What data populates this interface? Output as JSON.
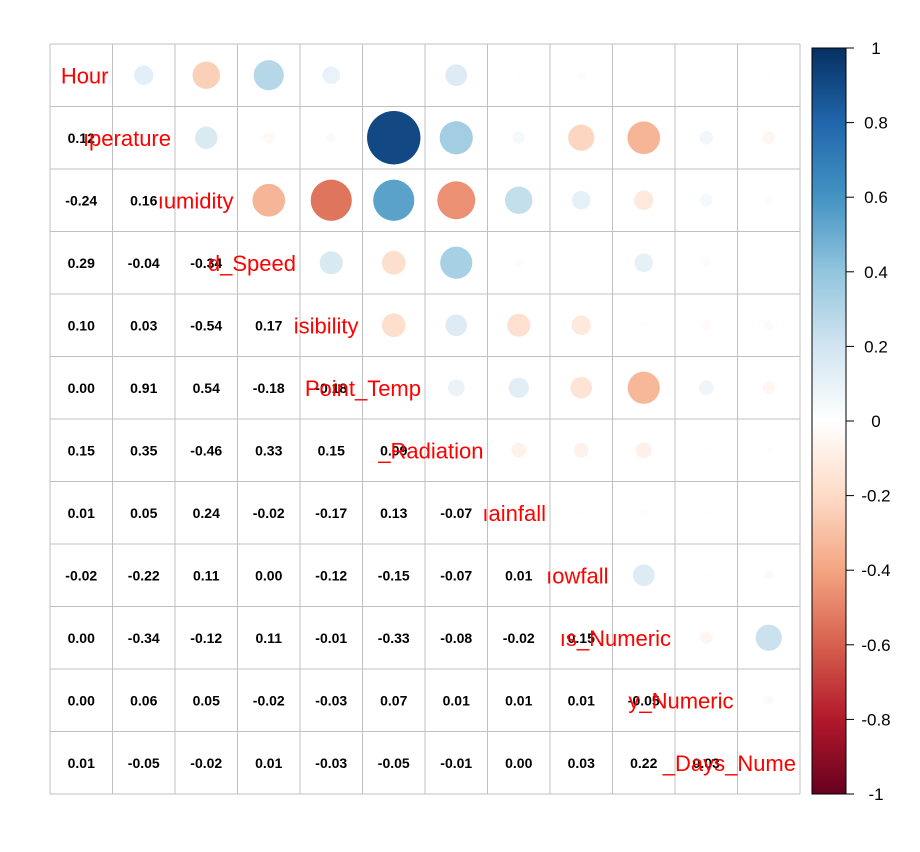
{
  "chart_data": {
    "type": "heatmap",
    "variables": [
      "Hour",
      "Temperature",
      "Humidity",
      "Wind_Speed",
      "Visibility",
      "Dew_Point_Temp",
      "Solar_Radiation",
      "Rainfall",
      "Snowfall",
      "Seasons_Numeric",
      "Holiday_Numeric",
      "Functioning_Days_Numeric"
    ],
    "diagonal_labels": [
      "Hour",
      "ıperature",
      "ıumidity",
      "d_Speed",
      "isibility",
      "Point_Temp",
      "_Radiation",
      "ıainfall",
      "ıowfall",
      "ıs_Numeric",
      "y_Numeric",
      "_Days_Nume"
    ],
    "matrix": [
      [
        1,
        0.12,
        -0.24,
        0.29,
        0.1,
        0.0,
        0.15,
        0.01,
        -0.02,
        0.0,
        0.0,
        0.01
      ],
      [
        0.12,
        1,
        0.16,
        -0.04,
        0.03,
        0.91,
        0.35,
        0.05,
        -0.22,
        -0.34,
        0.06,
        -0.05
      ],
      [
        -0.24,
        0.16,
        1,
        -0.34,
        -0.54,
        0.54,
        -0.46,
        0.24,
        0.11,
        -0.12,
        0.05,
        -0.02
      ],
      [
        0.29,
        -0.04,
        -0.34,
        1,
        0.17,
        -0.18,
        0.33,
        -0.02,
        0.0,
        0.11,
        -0.02,
        0.01
      ],
      [
        0.1,
        0.03,
        -0.54,
        0.17,
        1,
        -0.18,
        0.15,
        -0.17,
        -0.12,
        -0.01,
        -0.03,
        -0.03
      ],
      [
        0.0,
        0.91,
        0.54,
        -0.18,
        -0.18,
        1,
        0.09,
        0.13,
        -0.15,
        -0.33,
        0.07,
        -0.05
      ],
      [
        0.15,
        0.35,
        -0.46,
        0.33,
        0.15,
        0.09,
        1,
        -0.07,
        -0.07,
        -0.08,
        0.01,
        -0.01
      ],
      [
        0.01,
        0.05,
        0.24,
        -0.02,
        -0.17,
        0.13,
        -0.07,
        1,
        0.01,
        -0.02,
        0.01,
        0.0
      ],
      [
        -0.02,
        -0.22,
        0.11,
        0.0,
        -0.12,
        -0.15,
        -0.07,
        0.01,
        1,
        0.15,
        0.01,
        0.03
      ],
      [
        0.0,
        -0.34,
        -0.12,
        0.11,
        -0.01,
        -0.33,
        -0.08,
        -0.02,
        0.15,
        1,
        -0.05,
        0.22
      ],
      [
        0.0,
        0.06,
        0.05,
        -0.02,
        -0.03,
        0.07,
        0.01,
        0.01,
        0.01,
        -0.05,
        1,
        0.03
      ],
      [
        0.01,
        -0.05,
        -0.02,
        0.01,
        -0.03,
        -0.05,
        -0.01,
        0.0,
        0.03,
        0.22,
        0.03,
        1
      ]
    ],
    "lower_triangle": "numbers",
    "upper_triangle": "circles",
    "diagonal": "variable names",
    "colorbar": {
      "range": [
        -1,
        1
      ],
      "ticks": [
        "1",
        "0.8",
        "0.6",
        "0.4",
        "0.2",
        "0",
        "-0.2",
        "-0.4",
        "-0.6",
        "-0.8",
        "-1"
      ],
      "placement": "right"
    },
    "colors": {
      "strong_negative": "#67001f",
      "negative": "#d6604d",
      "weak_negative": "#fddbc7",
      "zero": "#ffffff",
      "weak_positive": "#d1e5f0",
      "positive": "#4393c3",
      "strong_positive": "#053061",
      "label": "#ff0000",
      "grid": "#c0c0c0"
    }
  }
}
